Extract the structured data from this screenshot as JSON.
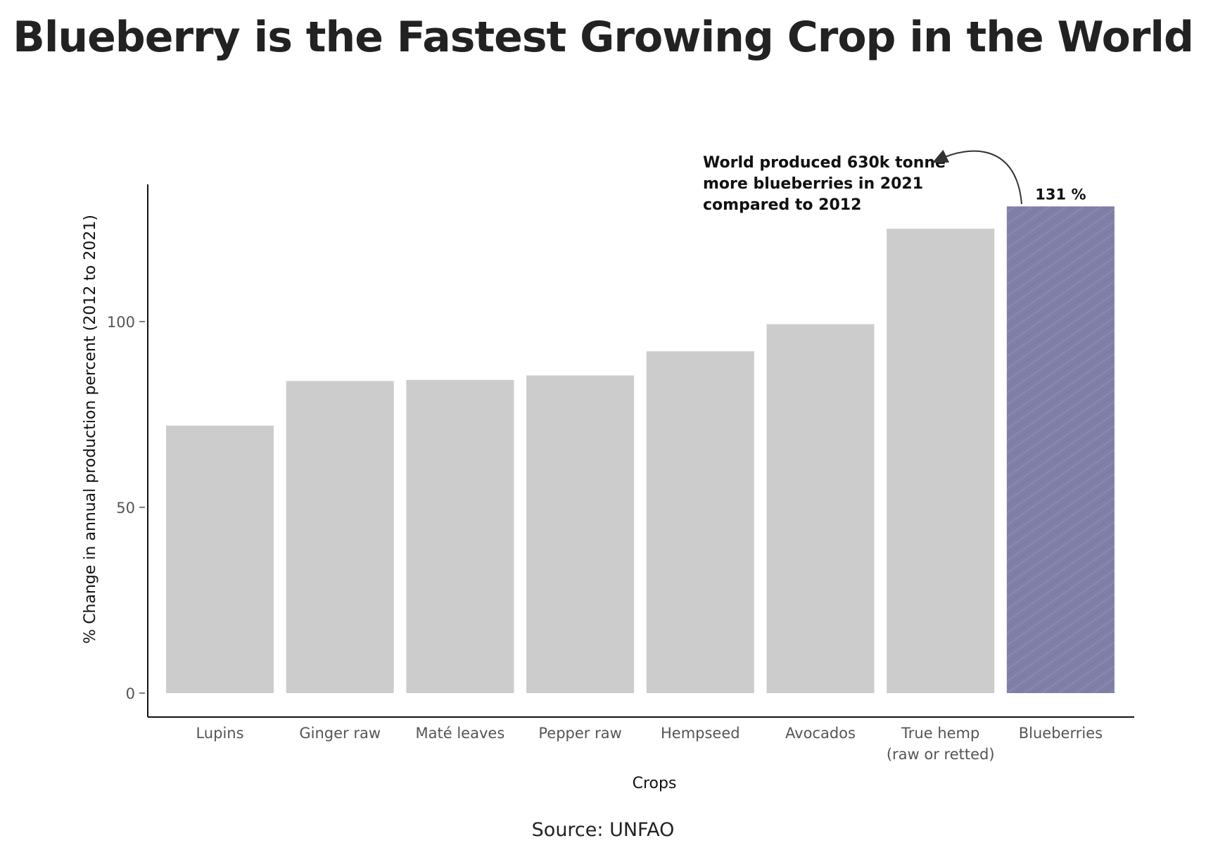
{
  "title": "Blueberry is the Fastest Growing Crop in the World",
  "source": "Source: UNFAO",
  "chart_data": {
    "type": "bar",
    "title": "Blueberry is the Fastest Growing Crop in the World",
    "xlabel": "Crops",
    "ylabel": "% Change in annual production percent (2012 to 2021)",
    "ylim": [
      0,
      135
    ],
    "yticks": [
      0,
      50,
      100
    ],
    "grid": false,
    "categories": [
      [
        "Lupins"
      ],
      [
        "Ginger raw"
      ],
      [
        "Maté leaves"
      ],
      [
        "Pepper raw"
      ],
      [
        "Hempseed"
      ],
      [
        "Avocados"
      ],
      [
        "True hemp",
        "(raw or retted)"
      ],
      [
        "Blueberries"
      ]
    ],
    "values": [
      72,
      84,
      84.3,
      85.5,
      92,
      99.3,
      125,
      131
    ],
    "colors": [
      "#cccccc",
      "#cccccc",
      "#cccccc",
      "#cccccc",
      "#cccccc",
      "#cccccc",
      "#cccccc",
      "#7f7fa8"
    ],
    "highlight_index": 7,
    "data_labels": [
      {
        "index": 7,
        "text": "131 %"
      }
    ],
    "annotation": {
      "lines": [
        "World produced 630k tonne",
        "more blueberries in 2021",
        "compared to 2012"
      ],
      "target_index": 7
    }
  }
}
